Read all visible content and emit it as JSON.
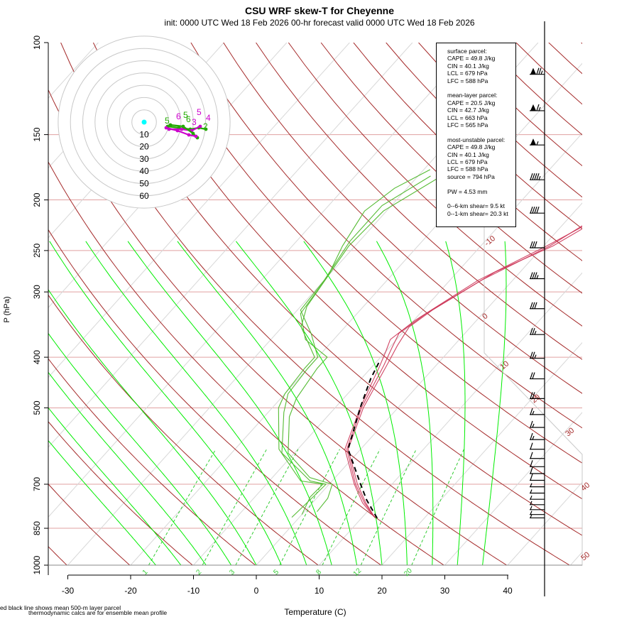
{
  "chart_data": {
    "type": "skew-t",
    "title": "CSU WRF skew-T for Cheyenne",
    "subtitle": "init: 0000 UTC Wed 18 Feb 2026     00-hr forecast valid 0000 UTC Wed 18 Feb 2026",
    "xlabel": "Temperature (C)",
    "ylabel": "P (hPa)",
    "x_ticks": [
      -30,
      -20,
      -10,
      0,
      10,
      20,
      30,
      40
    ],
    "p_ticks": [
      100,
      150,
      200,
      250,
      300,
      400,
      500,
      700,
      850,
      1000
    ],
    "p_range": [
      100,
      1000
    ],
    "isotherm_labels": [
      -10,
      0,
      10,
      20,
      30,
      40,
      50
    ],
    "mixing_ratio_labels": [
      "1",
      "2",
      "3",
      "5",
      "8",
      "12",
      "20"
    ],
    "temperature_profiles": [
      [
        [
          813,
          12.2
        ],
        [
          760,
          8.5
        ],
        [
          700,
          4.5
        ],
        [
          600,
          -2
        ],
        [
          500,
          -5.5
        ],
        [
          410,
          -8
        ],
        [
          380,
          -9
        ],
        [
          350,
          -9.8
        ],
        [
          325,
          -8.5
        ],
        [
          275,
          -4
        ],
        [
          245,
          1.5
        ],
        [
          210,
          6
        ],
        [
          160,
          11
        ],
        [
          130,
          13.7
        ],
        [
          108,
          23
        ]
      ],
      [
        [
          810,
          12.0
        ],
        [
          760,
          8.3
        ],
        [
          700,
          4.2
        ],
        [
          600,
          -2.2
        ],
        [
          500,
          -5.8
        ],
        [
          415,
          -8.3
        ],
        [
          385,
          -9.5
        ],
        [
          360,
          -10.5
        ],
        [
          330,
          -9
        ],
        [
          285,
          -5
        ],
        [
          245,
          1
        ],
        [
          205,
          5.5
        ],
        [
          160,
          10.5
        ],
        [
          130,
          14.5
        ],
        [
          108,
          21
        ]
      ],
      [
        [
          808,
          11.8
        ],
        [
          760,
          8.0
        ],
        [
          700,
          4.0
        ],
        [
          600,
          -2.5
        ],
        [
          500,
          -6.0
        ],
        [
          418,
          -8.8
        ],
        [
          390,
          -10
        ],
        [
          370,
          -11
        ],
        [
          340,
          -9.8
        ],
        [
          285,
          -5.5
        ],
        [
          245,
          0.5
        ],
        [
          215,
          5
        ],
        [
          165,
          10
        ],
        [
          125,
          15
        ],
        [
          108,
          20
        ]
      ]
    ],
    "dewpoint_profiles": [
      [
        [
          800,
          0
        ],
        [
          740,
          -1.2
        ],
        [
          700,
          -1
        ],
        [
          690,
          -5
        ],
        [
          600,
          -13
        ],
        [
          500,
          -19
        ],
        [
          470,
          -20
        ],
        [
          420,
          -20.5
        ],
        [
          400,
          -20.5
        ],
        [
          350,
          -27
        ],
        [
          320,
          -29
        ],
        [
          280,
          -30
        ],
        [
          245,
          -32
        ],
        [
          210,
          -33.5
        ],
        [
          190,
          -32
        ],
        [
          175,
          -29
        ]
      ],
      [
        [
          810,
          -1.2
        ],
        [
          750,
          -0.8
        ],
        [
          700,
          -0.5
        ],
        [
          690,
          -3.5
        ],
        [
          610,
          -12
        ],
        [
          510,
          -17.5
        ],
        [
          470,
          -19.5
        ],
        [
          420,
          -20
        ],
        [
          400,
          -20
        ],
        [
          360,
          -24.5
        ],
        [
          325,
          -29.5
        ],
        [
          285,
          -30
        ],
        [
          240,
          -31.5
        ],
        [
          205,
          -31.5
        ],
        [
          180,
          -28
        ]
      ],
      [
        [
          790,
          2
        ],
        [
          745,
          1.8
        ],
        [
          700,
          0.5
        ],
        [
          680,
          -4
        ],
        [
          610,
          -11
        ],
        [
          520,
          -16
        ],
        [
          480,
          -17.5
        ],
        [
          420,
          -18.5
        ],
        [
          400,
          -18.5
        ],
        [
          370,
          -24.5
        ],
        [
          330,
          -29
        ],
        [
          280,
          -30
        ],
        [
          245,
          -31
        ],
        [
          210,
          -30.5
        ],
        [
          175,
          -25.5
        ]
      ]
    ],
    "mean_parcel_profile": [
      [
        813,
        12.5
      ],
      [
        750,
        8.2
      ],
      [
        700,
        5.0
      ],
      [
        600,
        -2.0
      ],
      [
        500,
        -6.0
      ],
      [
        440,
        -8.5
      ],
      [
        410,
        -9.5
      ]
    ],
    "hodograph": {
      "ring_labels": [
        "10",
        "20",
        "30",
        "40",
        "50",
        "60"
      ],
      "point_labels": [
        "5",
        "5",
        "6",
        "6",
        "4",
        "5",
        "3",
        "2"
      ]
    },
    "wind_barbs": [
      {
        "p": 115,
        "speed_kt": 75
      },
      {
        "p": 135,
        "speed_kt": 65
      },
      {
        "p": 157,
        "speed_kt": 55
      },
      {
        "p": 183,
        "speed_kt": 45
      },
      {
        "p": 212,
        "speed_kt": 40
      },
      {
        "p": 247,
        "speed_kt": 30
      },
      {
        "p": 283,
        "speed_kt": 35
      },
      {
        "p": 323,
        "speed_kt": 30
      },
      {
        "p": 362,
        "speed_kt": 25
      },
      {
        "p": 402,
        "speed_kt": 25
      },
      {
        "p": 440,
        "speed_kt": 20
      },
      {
        "p": 480,
        "speed_kt": 20
      },
      {
        "p": 515,
        "speed_kt": 15
      },
      {
        "p": 545,
        "speed_kt": 15
      },
      {
        "p": 575,
        "speed_kt": 15
      },
      {
        "p": 600,
        "speed_kt": 10
      },
      {
        "p": 625,
        "speed_kt": 10
      },
      {
        "p": 648,
        "speed_kt": 10
      },
      {
        "p": 668,
        "speed_kt": 10
      },
      {
        "p": 688,
        "speed_kt": 10
      },
      {
        "p": 708,
        "speed_kt": 5
      },
      {
        "p": 728,
        "speed_kt": 5
      },
      {
        "p": 748,
        "speed_kt": 5
      },
      {
        "p": 766,
        "speed_kt": 5
      },
      {
        "p": 783,
        "speed_kt": 5
      },
      {
        "p": 800,
        "speed_kt": 5
      },
      {
        "p": 812,
        "speed_kt": 5
      }
    ]
  },
  "info_box": {
    "surface": [
      "surface parcel:",
      "CAPE = 49.8 J/kg",
      "CIN = 40.1 J/kg",
      "LCL = 679 hPa",
      "LFC = 588 hPa"
    ],
    "mean_layer": [
      "mean-layer parcel:",
      "CAPE = 20.5 J/kg",
      "CIN = 42.7 J/kg",
      "LCL = 663 hPa",
      "LFC = 565 hPa"
    ],
    "most_unstable": [
      "most-unstable parcel:",
      "CAPE = 49.8 J/kg",
      "CIN = 40.1 J/kg",
      "LCL = 679 hPa",
      "LFC = 588 hPa",
      "source = 794 hPa"
    ],
    "pw": "PW =  4.53 mm",
    "shear": [
      "0--6-km shear= 9.5 kt",
      "0--1-km shear= 20.3 kt"
    ]
  },
  "footer": {
    "line1": "ed black line shows mean 500-m layer parcel",
    "line2": "thermodynamic calcs are for ensemble mean profile"
  },
  "colors": {
    "isobar": "#e0a0a0",
    "isotherm": "#d8d8d8",
    "dry_adiabat": "#a52a2a",
    "moist_adiabat": "#00ee00",
    "mixing_ratio": "#33cc33",
    "temperature": "#cc3355",
    "dewpoint": "#55bb33",
    "parcel": "#000000",
    "hodograph_point": "#cc00cc",
    "hodograph_point_alt": "#22aa00",
    "hodograph_center": "#00ffff"
  }
}
